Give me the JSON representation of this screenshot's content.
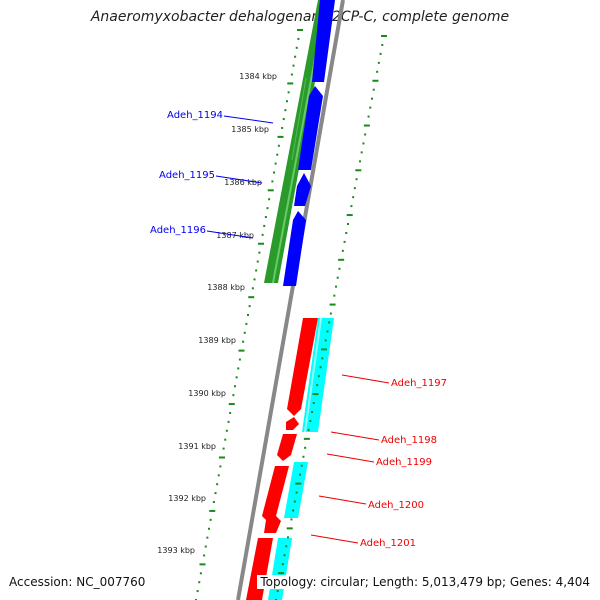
{
  "title": "Anaeromyxobacter dehalogenans 2CP-C, complete genome",
  "accession": "Accession: NC_007760",
  "summary": "Topology: circular; Length: 5,013,479 bp; Genes: 4,404",
  "ruler": {
    "kbp_labels": [
      "1384 kbp",
      "1385 kbp",
      "1386 kbp",
      "1387 kbp",
      "1388 kbp",
      "1389 kbp",
      "1390 kbp",
      "1391 kbp",
      "1392 kbp",
      "1393 kbp"
    ]
  },
  "genes_forward": {
    "color": "#0000ee",
    "labels": [
      "Adeh_1194",
      "Adeh_1195",
      "Adeh_1196"
    ]
  },
  "genes_reverse": {
    "color": "#ee0000",
    "labels": [
      "Adeh_1197",
      "Adeh_1198",
      "Adeh_1199",
      "Adeh_1200",
      "Adeh_1201"
    ]
  },
  "colors": {
    "forward_cds": "#0000ff",
    "reverse_cds": "#ff0000",
    "forward_feature": "#2a9a2a",
    "reverse_feature": "#00ffff",
    "backbone": "#888888",
    "tick_dots": "#1a8a1a"
  }
}
